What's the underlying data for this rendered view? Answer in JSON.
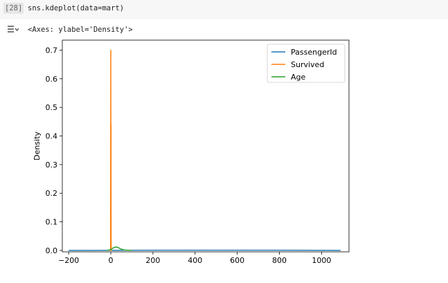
{
  "cell": {
    "execution_count": "[28]",
    "code": "sns.kdeplot(data=mart)"
  },
  "output": {
    "text": "<Axes: ylabel='Density'>",
    "toggle_icon": "output-collapse-icon"
  },
  "chart_data": {
    "type": "line",
    "ylabel": "Density",
    "xlabel": "",
    "xlim": [
      -230,
      1130
    ],
    "ylim": [
      -0.005,
      0.735
    ],
    "xticks": [
      -200,
      0,
      200,
      400,
      600,
      800,
      1000
    ],
    "xtick_labels": [
      "−200",
      "0",
      "200",
      "400",
      "600",
      "800",
      "1000"
    ],
    "yticks": [
      0.0,
      0.1,
      0.2,
      0.3,
      0.4,
      0.5,
      0.6,
      0.7
    ],
    "ytick_labels": [
      "0.0",
      "0.1",
      "0.2",
      "0.3",
      "0.4",
      "0.5",
      "0.6",
      "0.7"
    ],
    "grid": false,
    "legend_position": "top-right",
    "series": [
      {
        "name": "PassengerId",
        "color": "#1f77b4",
        "x": [
          -200,
          0,
          200,
          400,
          600,
          800,
          1000,
          1090
        ],
        "y": [
          0.0,
          0.0003,
          0.0006,
          0.0007,
          0.0007,
          0.0006,
          0.0004,
          0.0001
        ]
      },
      {
        "name": "Survived",
        "color": "#ff7f0e",
        "x": [
          -3,
          -1,
          -0.5,
          0,
          0.5,
          0.8,
          1,
          1.2,
          1.5,
          2,
          4
        ],
        "y": [
          0.0,
          0.0,
          0.35,
          0.7,
          0.3,
          0.2,
          0.44,
          0.15,
          0.03,
          0.0,
          0.0
        ]
      },
      {
        "name": "Age",
        "color": "#2ca02c",
        "x": [
          -20,
          0,
          10,
          20,
          28,
          35,
          45,
          60,
          80,
          100
        ],
        "y": [
          0.0,
          0.003,
          0.008,
          0.011,
          0.012,
          0.01,
          0.006,
          0.002,
          0.0005,
          0.0
        ]
      }
    ]
  }
}
